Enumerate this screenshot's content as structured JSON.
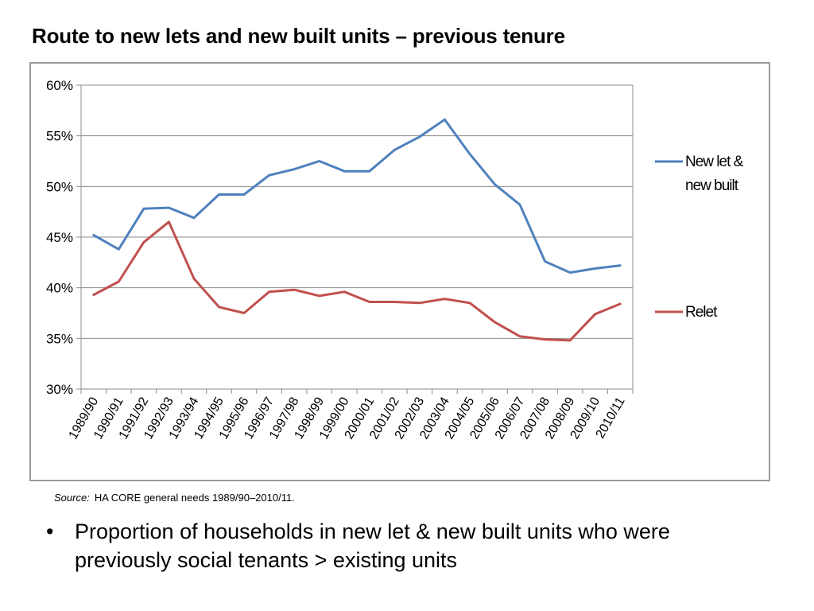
{
  "slide": {
    "title": "Route to new lets and new built units – previous tenure",
    "source_label": "Source:",
    "source_text": "HA CORE general needs 1989/90–2010/11.",
    "bullet_symbol": "•",
    "bullet_text": "Proportion of households in new let & new built units who were previously social tenants > existing units"
  },
  "chart_data": {
    "type": "line",
    "categories": [
      "1989/90",
      "1990/91",
      "1991/92",
      "1992/93",
      "1993/94",
      "1994/95",
      "1995/96",
      "1996/97",
      "1997/98",
      "1998/99",
      "1999/00",
      "2000/01",
      "2001/02",
      "2002/03",
      "2003/04",
      "2004/05",
      "2005/06",
      "2006/07",
      "2007/08",
      "2008/09",
      "2009/10",
      "2010/11"
    ],
    "series": [
      {
        "name": "New let & new built",
        "legend_lines": [
          "New let &",
          "new built"
        ],
        "color": "#4f81bd",
        "values": [
          45.2,
          43.8,
          47.8,
          47.9,
          46.9,
          49.2,
          49.2,
          51.1,
          51.7,
          52.5,
          51.5,
          51.5,
          53.6,
          54.9,
          56.6,
          53.2,
          50.2,
          48.2,
          42.6,
          41.5,
          41.9,
          42.2
        ]
      },
      {
        "name": "Relet",
        "legend_lines": [
          "Relet"
        ],
        "color": "#c0504d",
        "values": [
          39.3,
          40.6,
          44.5,
          46.5,
          40.9,
          38.1,
          37.5,
          39.6,
          39.8,
          39.2,
          39.6,
          38.6,
          38.6,
          38.5,
          38.9,
          38.5,
          36.6,
          35.2,
          34.9,
          34.8,
          37.4,
          38.4
        ]
      }
    ],
    "ylim": [
      30,
      60
    ],
    "yticks": [
      30,
      35,
      40,
      45,
      50,
      55,
      60
    ],
    "ytick_format": "%",
    "grid": true,
    "legend": "right"
  }
}
